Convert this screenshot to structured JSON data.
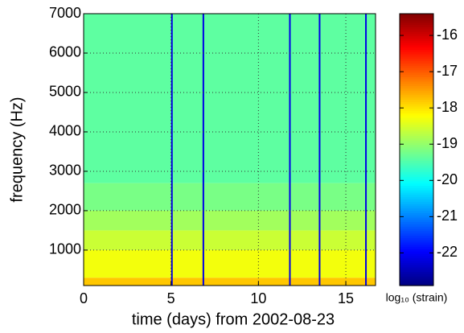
{
  "chart_data": {
    "type": "spectrogram",
    "xlabel": "time (days) from 2002-08-23",
    "ylabel": "frequency (Hz)",
    "colorbar_label": "log₁₀ (strain)",
    "xlim": [
      0,
      16.7
    ],
    "xticks": [
      0,
      5,
      10,
      15
    ],
    "ylim": [
      100,
      7000
    ],
    "yticks": [
      1000,
      2000,
      3000,
      4000,
      5000,
      6000,
      7000
    ],
    "frequency_bins": [
      100,
      300,
      1000,
      1500,
      2000,
      2700,
      7000
    ],
    "levels": [
      -17.8,
      -18.3,
      -18.6,
      -18.9,
      -19.2,
      -19.4
    ],
    "gaps": [
      5.05,
      6.85,
      11.8,
      13.5,
      16.15
    ],
    "clim": [
      -22.9,
      -15.4
    ],
    "cticks": [
      -22,
      -21,
      -20,
      -19,
      -18,
      -17,
      -16
    ],
    "colormap": "jet",
    "grid": true
  }
}
